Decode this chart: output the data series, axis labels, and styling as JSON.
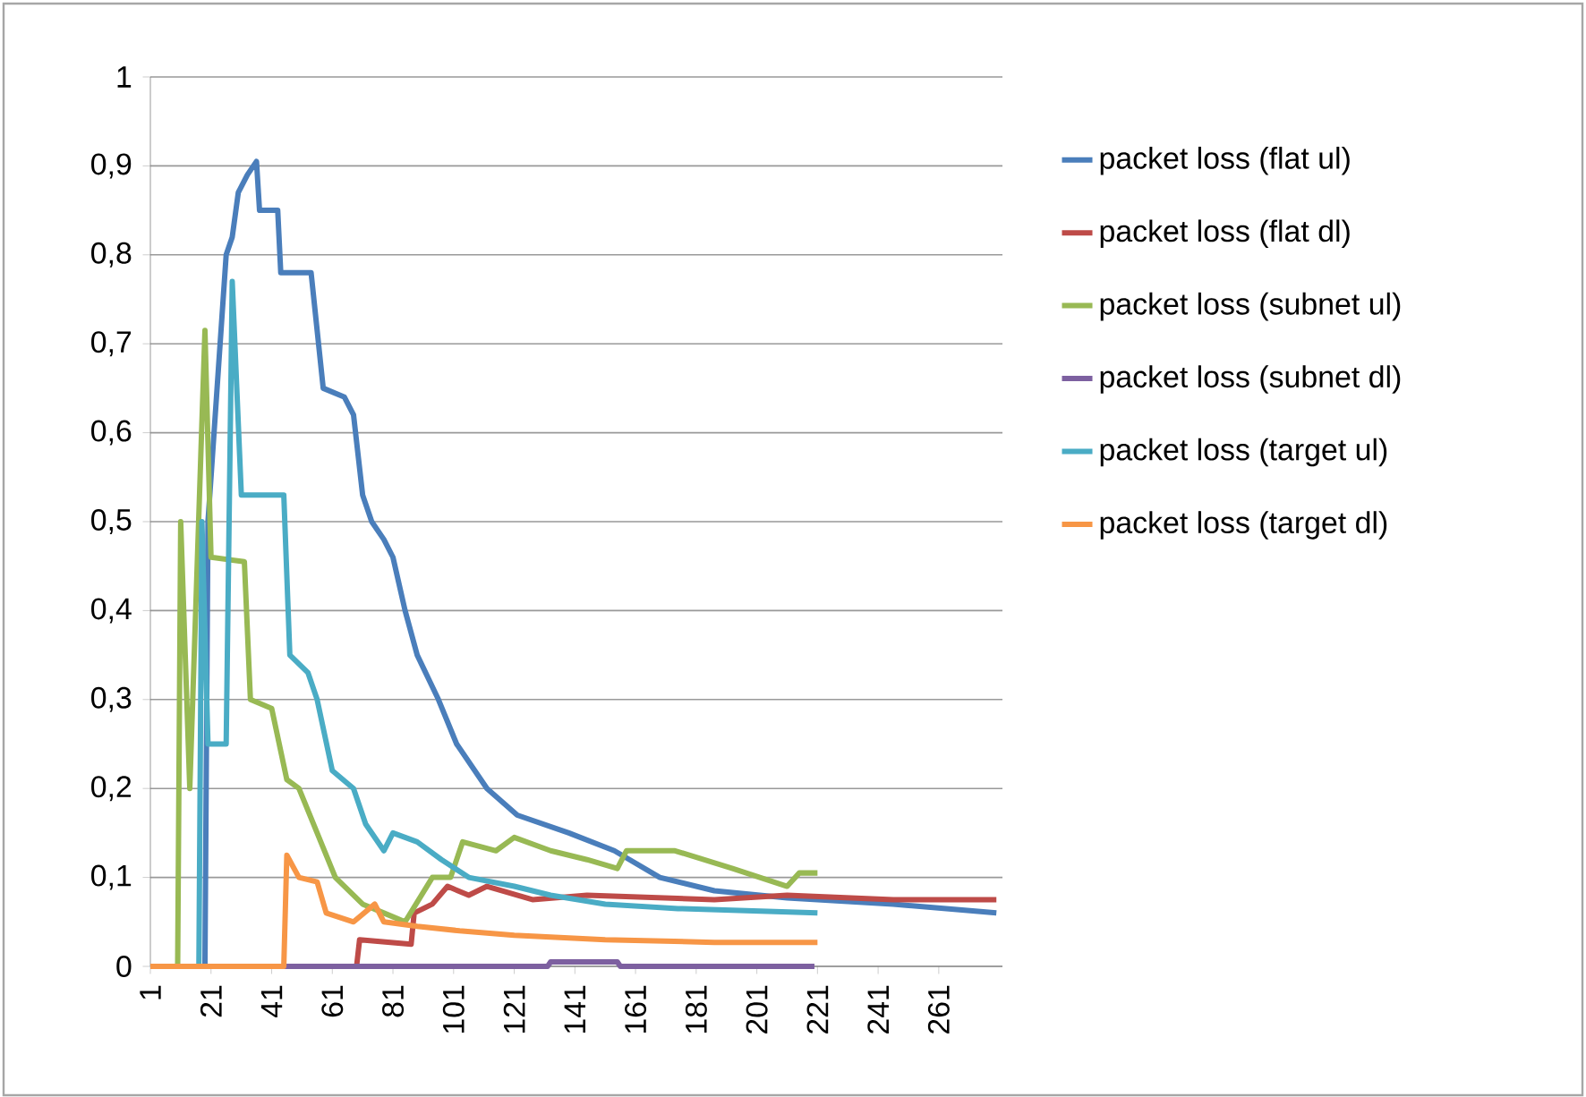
{
  "chart_data": {
    "type": "line",
    "grid": "y",
    "legend": "right",
    "line_style": "solid",
    "marker": "none",
    "xlim": [
      1,
      282
    ],
    "xticks": [
      1,
      21,
      41,
      61,
      81,
      101,
      121,
      141,
      161,
      181,
      201,
      221,
      241,
      261
    ],
    "ylim": [
      0,
      1
    ],
    "yticks": [
      0,
      {
        "value": 0.1,
        "label": "0,1"
      },
      {
        "value": 0.2,
        "label": "0,2"
      },
      {
        "value": 0.3,
        "label": "0,3"
      },
      {
        "value": 0.4,
        "label": "0,4"
      },
      {
        "value": 0.5,
        "label": "0,5"
      },
      {
        "value": 0.6,
        "label": "0,6"
      },
      {
        "value": 0.7,
        "label": "0,7"
      },
      {
        "value": 0.8,
        "label": "0,8"
      },
      {
        "value": 0.9,
        "label": "0,9"
      },
      1
    ],
    "series": [
      {
        "name": "packet loss (flat ul)",
        "color": "#4a7ebb",
        "x": [
          1,
          19,
          20,
          26,
          28,
          30,
          33,
          36,
          37,
          43,
          44,
          54,
          58,
          65,
          68,
          71,
          74,
          78,
          81,
          85,
          89,
          96,
          102,
          112,
          122,
          139,
          154,
          169,
          187,
          211,
          246,
          280
        ],
        "values": [
          0,
          0,
          0.5,
          0.8,
          0.82,
          0.87,
          0.89,
          0.905,
          0.85,
          0.85,
          0.78,
          0.78,
          0.65,
          0.64,
          0.62,
          0.53,
          0.5,
          0.48,
          0.46,
          0.4,
          0.35,
          0.3,
          0.25,
          0.2,
          0.17,
          0.15,
          0.13,
          0.1,
          0.085,
          0.077,
          0.07,
          0.06
        ]
      },
      {
        "name": "packet loss (flat dl)",
        "color": "#be4b48",
        "x": [
          1,
          69,
          70,
          87,
          88,
          94,
          99,
          106,
          112,
          127,
          145,
          187,
          211,
          246,
          280
        ],
        "values": [
          0,
          0,
          0.03,
          0.025,
          0.06,
          0.07,
          0.09,
          0.08,
          0.09,
          0.075,
          0.08,
          0.075,
          0.08,
          0.075,
          0.075
        ]
      },
      {
        "name": "packet loss (subnet ul)",
        "color": "#98b954",
        "x": [
          1,
          10,
          11,
          14,
          19,
          21,
          32,
          34,
          41,
          46,
          50,
          56,
          62,
          71,
          78,
          85,
          94,
          100,
          104,
          115,
          121,
          133,
          145,
          155,
          158,
          174,
          193,
          211,
          215,
          221
        ],
        "values": [
          0,
          0,
          0.5,
          0.2,
          0.715,
          0.46,
          0.455,
          0.3,
          0.29,
          0.21,
          0.2,
          0.15,
          0.1,
          0.07,
          0.06,
          0.05,
          0.1,
          0.1,
          0.14,
          0.13,
          0.145,
          0.13,
          0.12,
          0.11,
          0.13,
          0.13,
          0.11,
          0.09,
          0.105,
          0.105
        ]
      },
      {
        "name": "packet loss (subnet dl)",
        "color": "#7d60a0",
        "x": [
          1,
          132,
          133,
          155,
          156,
          220
        ],
        "values": [
          0,
          0,
          0.005,
          0.005,
          0,
          0
        ]
      },
      {
        "name": "packet loss (target ul)",
        "color": "#4aacc5",
        "x": [
          1,
          17,
          18,
          20,
          26,
          28,
          31,
          45,
          47,
          53,
          56,
          61,
          68,
          72,
          78,
          81,
          89,
          97,
          106,
          121,
          133,
          151,
          175,
          221
        ],
        "values": [
          0,
          0,
          0.5,
          0.25,
          0.25,
          0.77,
          0.53,
          0.53,
          0.35,
          0.33,
          0.3,
          0.22,
          0.2,
          0.16,
          0.13,
          0.15,
          0.14,
          0.12,
          0.1,
          0.09,
          0.08,
          0.07,
          0.065,
          0.06
        ]
      },
      {
        "name": "packet loss (target dl)",
        "color": "#f79646",
        "x": [
          1,
          45,
          46,
          50,
          56,
          59,
          68,
          75,
          78,
          89,
          103,
          121,
          151,
          187,
          221
        ],
        "values": [
          0,
          0,
          0.125,
          0.1,
          0.095,
          0.06,
          0.05,
          0.07,
          0.05,
          0.045,
          0.04,
          0.035,
          0.03,
          0.027,
          0.027
        ]
      }
    ]
  }
}
